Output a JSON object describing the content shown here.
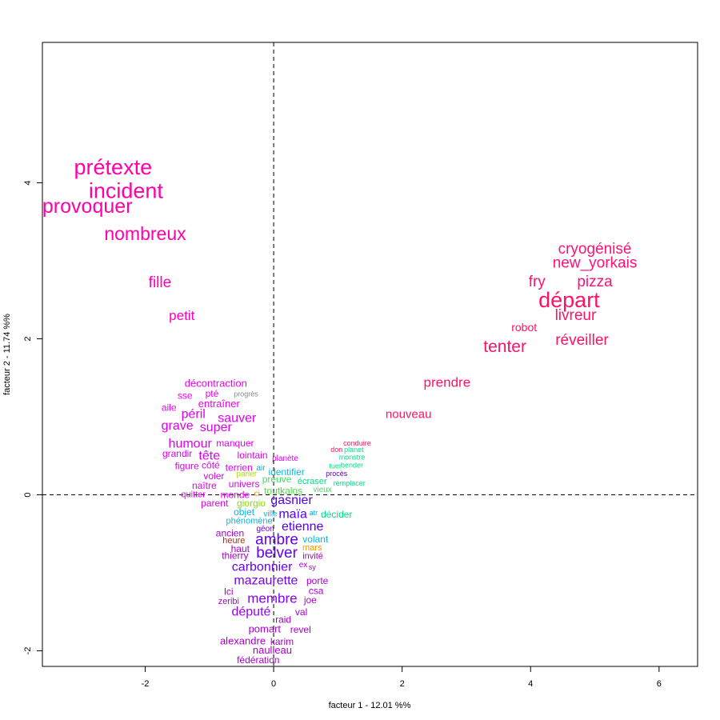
{
  "chart_data": {
    "type": "scatter",
    "xlabel": "facteur  1  - 12.01 %%",
    "ylabel": "facteur  2  - 11.74 %%",
    "xlim": [
      -3.6,
      6.6
    ],
    "ylim": [
      -2.2,
      5.8
    ],
    "xticks": [
      -2,
      0,
      2,
      4,
      6
    ],
    "yticks": [
      -2,
      0,
      2,
      4
    ],
    "reference_lines": {
      "x": 0,
      "y": 0,
      "style": "dashed"
    },
    "grid": false,
    "points": [
      {
        "label": "prétexte",
        "x": -2.5,
        "y": 4.2,
        "size": 27,
        "color": "#ff00aa"
      },
      {
        "label": "incident",
        "x": -2.3,
        "y": 3.9,
        "size": 27,
        "color": "#ff00aa"
      },
      {
        "label": "provoquer",
        "x": -2.9,
        "y": 3.7,
        "size": 25,
        "color": "#ff00aa"
      },
      {
        "label": "nombreux",
        "x": -2.0,
        "y": 3.35,
        "size": 23,
        "color": "#ff00aa"
      },
      {
        "label": "fille",
        "x": -1.77,
        "y": 2.72,
        "size": 19,
        "color": "#ff00bb"
      },
      {
        "label": "petit",
        "x": -1.43,
        "y": 2.3,
        "size": 17,
        "color": "#ff00bb"
      },
      {
        "label": "cryogénisé",
        "x": 5.0,
        "y": 3.15,
        "size": 19,
        "color": "#ff1177"
      },
      {
        "label": "new_yorkais",
        "x": 5.0,
        "y": 2.97,
        "size": 19,
        "color": "#ff1177"
      },
      {
        "label": "fry",
        "x": 4.1,
        "y": 2.73,
        "size": 19,
        "color": "#ff1177"
      },
      {
        "label": "pizza",
        "x": 5.0,
        "y": 2.73,
        "size": 19,
        "color": "#ff1177"
      },
      {
        "label": "départ",
        "x": 4.6,
        "y": 2.5,
        "size": 27,
        "color": "#ff1166"
      },
      {
        "label": "livreur",
        "x": 4.7,
        "y": 2.3,
        "size": 19,
        "color": "#ff1166"
      },
      {
        "label": "robot",
        "x": 3.9,
        "y": 2.15,
        "size": 14,
        "color": "#ff1166"
      },
      {
        "label": "tenter",
        "x": 3.6,
        "y": 1.9,
        "size": 21,
        "color": "#ff1166"
      },
      {
        "label": "réveiller",
        "x": 4.8,
        "y": 1.98,
        "size": 19,
        "color": "#ff1166"
      },
      {
        "label": "prendre",
        "x": 2.7,
        "y": 1.44,
        "size": 17,
        "color": "#ff1166"
      },
      {
        "label": "nouveau",
        "x": 2.1,
        "y": 1.03,
        "size": 15,
        "color": "#ff1166"
      },
      {
        "label": "décontraction",
        "x": -0.9,
        "y": 1.43,
        "size": 13,
        "color": "#ee00ee"
      },
      {
        "label": "sse",
        "x": -1.38,
        "y": 1.27,
        "size": 12,
        "color": "#ee00ee"
      },
      {
        "label": "pté",
        "x": -0.96,
        "y": 1.3,
        "size": 12,
        "color": "#ee00ee"
      },
      {
        "label": "progrès",
        "x": -0.43,
        "y": 1.29,
        "size": 9,
        "color": "#888888"
      },
      {
        "label": "entraîner",
        "x": -0.85,
        "y": 1.17,
        "size": 13,
        "color": "#ee00ee"
      },
      {
        "label": "aile",
        "x": -1.63,
        "y": 1.12,
        "size": 12,
        "color": "#ee00ee"
      },
      {
        "label": "péril",
        "x": -1.25,
        "y": 1.03,
        "size": 16,
        "color": "#dd00ee"
      },
      {
        "label": "sauver",
        "x": -0.57,
        "y": 0.98,
        "size": 16,
        "color": "#dd00ee"
      },
      {
        "label": "grave",
        "x": -1.5,
        "y": 0.88,
        "size": 16,
        "color": "#dd00ee"
      },
      {
        "label": "super",
        "x": -0.9,
        "y": 0.86,
        "size": 16,
        "color": "#dd00ee"
      },
      {
        "label": "humour",
        "x": -1.3,
        "y": 0.65,
        "size": 16,
        "color": "#dd00ee"
      },
      {
        "label": "manquer",
        "x": -0.6,
        "y": 0.66,
        "size": 12,
        "color": "#dd00ee"
      },
      {
        "label": "grandir",
        "x": -1.5,
        "y": 0.53,
        "size": 12,
        "color": "#dd00ee"
      },
      {
        "label": "tête",
        "x": -1.0,
        "y": 0.5,
        "size": 16,
        "color": "#dd00ee"
      },
      {
        "label": "lointain",
        "x": -0.33,
        "y": 0.51,
        "size": 12,
        "color": "#dd00ee"
      },
      {
        "label": "planète",
        "x": 0.18,
        "y": 0.46,
        "size": 10,
        "color": "#dd00ee"
      },
      {
        "label": "figure",
        "x": -1.35,
        "y": 0.37,
        "size": 12,
        "color": "#dd00ee"
      },
      {
        "label": "côté",
        "x": -0.98,
        "y": 0.38,
        "size": 12,
        "color": "#dd00ee"
      },
      {
        "label": "terrien",
        "x": -0.54,
        "y": 0.35,
        "size": 12,
        "color": "#dd00ee"
      },
      {
        "label": "air",
        "x": -0.2,
        "y": 0.34,
        "size": 10,
        "color": "#00aaee"
      },
      {
        "label": "identifier",
        "x": 0.2,
        "y": 0.29,
        "size": 12,
        "color": "#00bbdd"
      },
      {
        "label": "parler",
        "x": -0.42,
        "y": 0.26,
        "size": 10,
        "color": "#aadd00"
      },
      {
        "label": "voler",
        "x": -0.93,
        "y": 0.24,
        "size": 12,
        "color": "#dd00ee"
      },
      {
        "label": "preuve",
        "x": 0.05,
        "y": 0.2,
        "size": 12,
        "color": "#44dd66"
      },
      {
        "label": "naître",
        "x": -1.08,
        "y": 0.12,
        "size": 12,
        "color": "#dd00ee"
      },
      {
        "label": "univers",
        "x": -0.46,
        "y": 0.14,
        "size": 12,
        "color": "#dd00ee"
      },
      {
        "label": "toutkalos",
        "x": 0.15,
        "y": 0.05,
        "size": 12,
        "color": "#44dd44"
      },
      {
        "label": "écraser",
        "x": 0.6,
        "y": 0.17,
        "size": 11,
        "color": "#00dd88"
      },
      {
        "label": "vieux",
        "x": 0.76,
        "y": 0.06,
        "size": 10,
        "color": "#44dd66"
      },
      {
        "label": "quitter",
        "x": -1.25,
        "y": 0.0,
        "size": 11,
        "color": "#dd00ee"
      },
      {
        "label": "monde",
        "x": -0.6,
        "y": 0.0,
        "size": 12,
        "color": "#dd00ee"
      },
      {
        "label": "ci",
        "x": -0.26,
        "y": 0.01,
        "size": 10,
        "color": "#ff8800"
      },
      {
        "label": "parent",
        "x": -0.92,
        "y": -0.11,
        "size": 12,
        "color": "#dd00ee"
      },
      {
        "label": "giorgio",
        "x": -0.35,
        "y": -0.11,
        "size": 12,
        "color": "#88dd00"
      },
      {
        "label": "gasnier",
        "x": 0.28,
        "y": -0.07,
        "size": 16,
        "color": "#5500ee"
      },
      {
        "label": "conduire",
        "x": 1.3,
        "y": 0.66,
        "size": 9,
        "color": "#ff1166"
      },
      {
        "label": "don",
        "x": 0.98,
        "y": 0.58,
        "size": 9,
        "color": "#ff1166"
      },
      {
        "label": "planet",
        "x": 1.25,
        "y": 0.58,
        "size": 9,
        "color": "#00dd88"
      },
      {
        "label": "monstre",
        "x": 1.22,
        "y": 0.48,
        "size": 9,
        "color": "#00dd88"
      },
      {
        "label": "tuer",
        "x": 0.96,
        "y": 0.37,
        "size": 9,
        "color": "#00dd88"
      },
      {
        "label": "bender",
        "x": 1.22,
        "y": 0.38,
        "size": 9,
        "color": "#00dd88"
      },
      {
        "label": "procès",
        "x": 0.98,
        "y": 0.27,
        "size": 9,
        "color": "#6600cc"
      },
      {
        "label": "remplacer",
        "x": 1.18,
        "y": 0.15,
        "size": 9,
        "color": "#00dd88"
      },
      {
        "label": "objet",
        "x": -0.46,
        "y": -0.22,
        "size": 12,
        "color": "#00bbdd"
      },
      {
        "label": "ville",
        "x": -0.05,
        "y": -0.25,
        "size": 10,
        "color": "#00bbdd"
      },
      {
        "label": "maïa",
        "x": 0.3,
        "y": -0.25,
        "size": 16,
        "color": "#5500ee"
      },
      {
        "label": "atr",
        "x": 0.62,
        "y": -0.23,
        "size": 9,
        "color": "#00aaee"
      },
      {
        "label": "décider",
        "x": 0.98,
        "y": -0.25,
        "size": 12,
        "color": "#00dd88"
      },
      {
        "label": "phénomène",
        "x": -0.38,
        "y": -0.34,
        "size": 11,
        "color": "#00bbdd"
      },
      {
        "label": "etienne",
        "x": 0.45,
        "y": -0.41,
        "size": 16,
        "color": "#5500ee"
      },
      {
        "label": "géon",
        "x": -0.13,
        "y": -0.44,
        "size": 10,
        "color": "#7700cc"
      },
      {
        "label": "ancien",
        "x": -0.68,
        "y": -0.49,
        "size": 12,
        "color": "#aa00cc"
      },
      {
        "label": "heure",
        "x": -0.62,
        "y": -0.59,
        "size": 11,
        "color": "#cc2200"
      },
      {
        "label": "ambre",
        "x": 0.05,
        "y": -0.58,
        "size": 19,
        "color": "#6600ee"
      },
      {
        "label": "volant",
        "x": 0.65,
        "y": -0.57,
        "size": 12,
        "color": "#00bbdd"
      },
      {
        "label": "haut",
        "x": -0.52,
        "y": -0.69,
        "size": 12,
        "color": "#aa00cc"
      },
      {
        "label": "mars",
        "x": 0.6,
        "y": -0.68,
        "size": 11,
        "color": "#ee9900"
      },
      {
        "label": "belver",
        "x": 0.05,
        "y": -0.75,
        "size": 19,
        "color": "#6600ee"
      },
      {
        "label": "thierry",
        "x": -0.6,
        "y": -0.78,
        "size": 12,
        "color": "#aa00cc"
      },
      {
        "label": "invité",
        "x": 0.61,
        "y": -0.79,
        "size": 11,
        "color": "#aa00cc"
      },
      {
        "label": "carbonnier",
        "x": -0.18,
        "y": -0.93,
        "size": 16,
        "color": "#6600ee"
      },
      {
        "label": "ex",
        "x": 0.46,
        "y": -0.9,
        "size": 10,
        "color": "#aa00cc"
      },
      {
        "label": "sy",
        "x": 0.6,
        "y": -0.93,
        "size": 9,
        "color": "#aa00cc"
      },
      {
        "label": "mazaurette",
        "x": -0.12,
        "y": -1.1,
        "size": 16,
        "color": "#7700ee"
      },
      {
        "label": "porte",
        "x": 0.68,
        "y": -1.1,
        "size": 12,
        "color": "#aa00cc"
      },
      {
        "label": "lci",
        "x": -0.7,
        "y": -1.24,
        "size": 12,
        "color": "#aa00cc"
      },
      {
        "label": "csa",
        "x": 0.66,
        "y": -1.23,
        "size": 12,
        "color": "#aa00cc"
      },
      {
        "label": "membre",
        "x": -0.02,
        "y": -1.33,
        "size": 17,
        "color": "#8800ee"
      },
      {
        "label": "joe",
        "x": 0.57,
        "y": -1.35,
        "size": 12,
        "color": "#aa00cc"
      },
      {
        "label": "zeribi",
        "x": -0.7,
        "y": -1.37,
        "size": 11,
        "color": "#aa00cc"
      },
      {
        "label": "député",
        "x": -0.35,
        "y": -1.5,
        "size": 16,
        "color": "#9900ee"
      },
      {
        "label": "val",
        "x": 0.43,
        "y": -1.5,
        "size": 12,
        "color": "#aa00cc"
      },
      {
        "label": "raid",
        "x": 0.15,
        "y": -1.6,
        "size": 12,
        "color": "#aa00cc"
      },
      {
        "label": "pomart",
        "x": -0.14,
        "y": -1.72,
        "size": 13,
        "color": "#aa00cc"
      },
      {
        "label": "revel",
        "x": 0.42,
        "y": -1.73,
        "size": 12,
        "color": "#aa00cc"
      },
      {
        "label": "alexandre",
        "x": -0.48,
        "y": -1.87,
        "size": 13,
        "color": "#aa00cc"
      },
      {
        "label": "karim",
        "x": 0.13,
        "y": -1.88,
        "size": 12,
        "color": "#aa00cc"
      },
      {
        "label": "naulleau",
        "x": -0.02,
        "y": -1.99,
        "size": 13,
        "color": "#aa00cc"
      },
      {
        "label": "fédération",
        "x": -0.24,
        "y": -2.12,
        "size": 12,
        "color": "#aa00cc"
      }
    ]
  }
}
